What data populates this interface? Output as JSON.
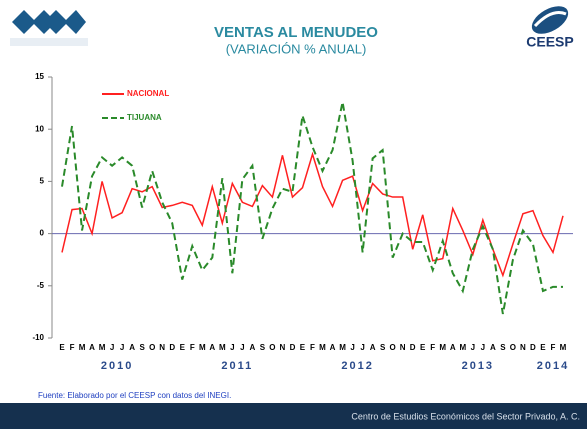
{
  "chart_data": {
    "type": "line",
    "title": "VENTAS AL MENUDEO",
    "subtitle": "(VARIACIÓN % ANUAL)",
    "logo_text": "CEESP",
    "categories": [
      "E",
      "F",
      "M",
      "A",
      "M",
      "J",
      "J",
      "A",
      "S",
      "O",
      "N",
      "D",
      "E",
      "F",
      "M",
      "A",
      "M",
      "J",
      "J",
      "A",
      "S",
      "O",
      "N",
      "D",
      "E",
      "F",
      "M",
      "A",
      "M",
      "J",
      "J",
      "A",
      "S",
      "O",
      "N",
      "D",
      "E",
      "F",
      "M",
      "A",
      "M",
      "J",
      "J",
      "A",
      "S",
      "O",
      "N",
      "D",
      "E",
      "F",
      "M"
    ],
    "year_labels": [
      "2010",
      "2011",
      "2012",
      "2013",
      "2014"
    ],
    "series": [
      {
        "name": "NACIONAL",
        "color": "#ff2020",
        "dash": false,
        "values": [
          -1.8,
          2.3,
          2.4,
          0,
          5,
          1.5,
          2,
          4.3,
          4,
          4.5,
          2.5,
          2.7,
          3,
          2.7,
          0.8,
          4.5,
          1,
          4.8,
          3,
          2.6,
          4.6,
          3.5,
          7.5,
          3.5,
          4.4,
          7.6,
          4.5,
          2.6,
          5.1,
          5.5,
          2.2,
          4.8,
          3.8,
          3.5,
          3.5,
          -1.5,
          1.8,
          -2.6,
          -2.4,
          2.4,
          0.3,
          -2,
          1.3,
          -1.5,
          -4,
          -1,
          1.9,
          2.2,
          -0.2,
          -1.8,
          1.7
        ]
      },
      {
        "name": "TIJUANA",
        "color": "#2a8a2a",
        "dash": true,
        "values": [
          4.5,
          10.3,
          0.3,
          5.5,
          7.3,
          6.5,
          7.3,
          6.5,
          2.5,
          6,
          3,
          1,
          -4.4,
          -1.2,
          -3.5,
          -2.3,
          5.3,
          -3.8,
          5.2,
          6.5,
          -0.5,
          2.4,
          4.3,
          4,
          11.3,
          8.3,
          6,
          8,
          12.6,
          7,
          -1.8,
          7.2,
          8,
          -2.3,
          0,
          -0.8,
          -0.8,
          -3.5,
          -0.7,
          -3.8,
          -5.5,
          -1.5,
          0.7,
          -1.5,
          -7.7,
          -2.5,
          0.3,
          -1,
          -5.5,
          -5.1,
          -5.1
        ]
      }
    ],
    "ylim": [
      -10,
      15
    ],
    "yticks": [
      -10,
      -5,
      0,
      5,
      10,
      15
    ],
    "source": "Fuente:  Elaborado por el CEESP con datos del INEGI.",
    "footer": "Centro de Estudios Económicos del Sector Privado, A. C."
  }
}
